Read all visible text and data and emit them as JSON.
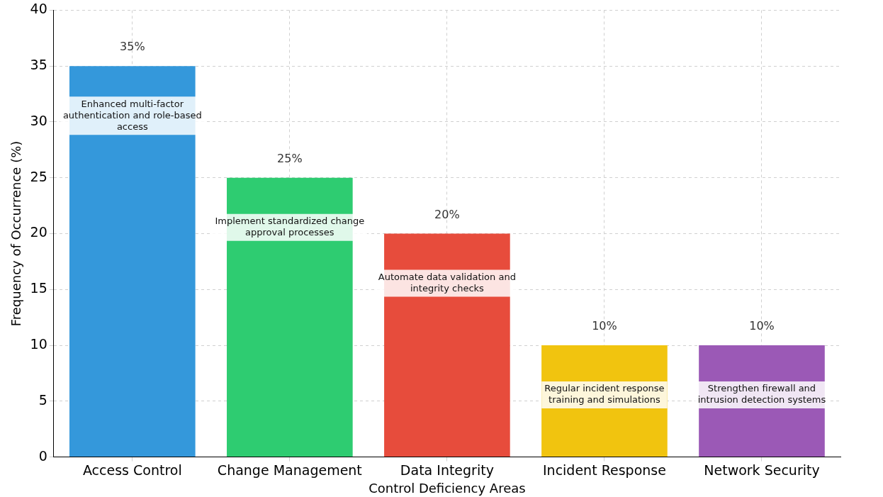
{
  "chart_data": {
    "type": "bar",
    "xlabel": "Control Deficiency Areas",
    "ylabel": "Frequency of Occurrence (%)",
    "categories": [
      "Access Control",
      "Change Management",
      "Data Integrity",
      "Incident Response",
      "Network Security"
    ],
    "values": [
      35,
      25,
      20,
      10,
      10
    ],
    "colors": [
      "#3498db",
      "#2ecc71",
      "#e74c3c",
      "#f1c40f",
      "#9b59b6"
    ],
    "value_labels": [
      "35%",
      "25%",
      "20%",
      "10%",
      "10%"
    ],
    "ylim": [
      0,
      40
    ],
    "yticks": [
      0,
      5,
      10,
      15,
      20,
      25,
      30,
      35,
      40
    ],
    "grid": true,
    "annotations": [
      "Enhanced multi-factor authentication and role-based access",
      "Implement standardized change approval processes",
      "Automate data validation and integrity checks",
      "Regular incident response training and simulations",
      "Strengthen firewall and intrusion detection systems"
    ]
  }
}
